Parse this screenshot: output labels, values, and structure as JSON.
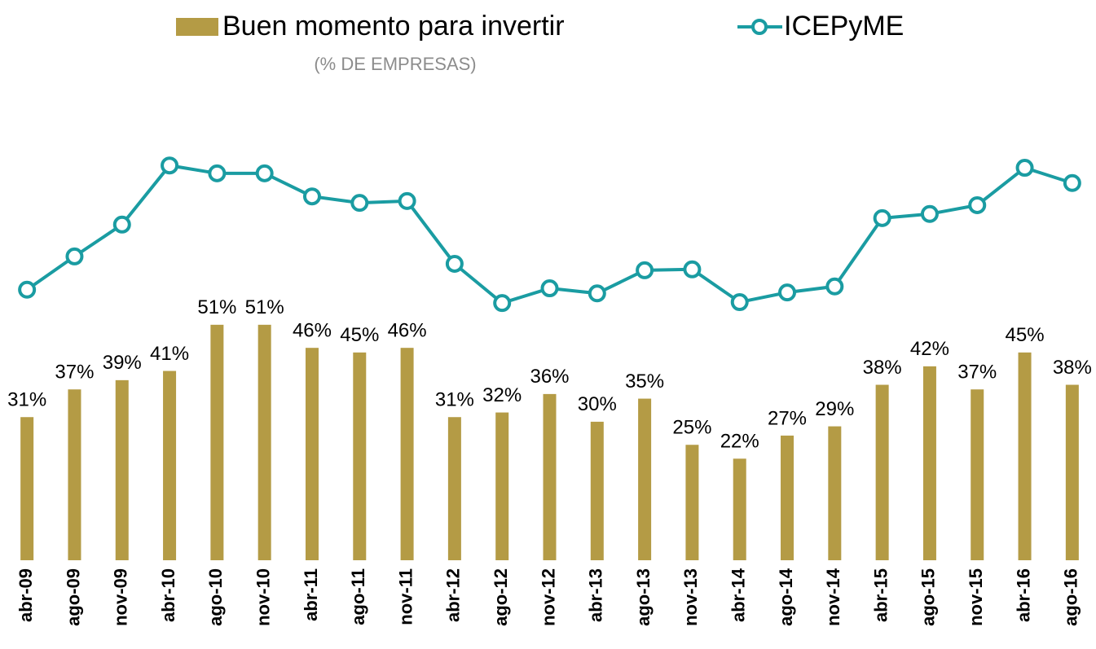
{
  "chart_data": {
    "type": "bar",
    "subtitle": "(% DE EMPRESAS)",
    "categories": [
      "abr-09",
      "ago-09",
      "nov-09",
      "abr-10",
      "ago-10",
      "nov-10",
      "abr-11",
      "ago-11",
      "nov-11",
      "abr-12",
      "ago-12",
      "nov-12",
      "abr-13",
      "ago-13",
      "nov-13",
      "abr-14",
      "ago-14",
      "nov-14",
      "abr-15",
      "ago-15",
      "nov-15",
      "abr-16",
      "ago-16"
    ],
    "series": [
      {
        "name": "Buen momento para invertir",
        "type": "bar",
        "color": "#b49b45",
        "values": [
          31,
          37,
          39,
          41,
          51,
          51,
          46,
          45,
          46,
          31,
          32,
          36,
          30,
          35,
          25,
          22,
          27,
          29,
          38,
          42,
          37,
          45,
          38
        ],
        "value_labels": [
          "31%",
          "37%",
          "39%",
          "41%",
          "51%",
          "51%",
          "46%",
          "45%",
          "46%",
          "31%",
          "32%",
          "36%",
          "30%",
          "35%",
          "25%",
          "22%",
          "27%",
          "29%",
          "38%",
          "42%",
          "37%",
          "45%",
          "38%"
        ]
      },
      {
        "name": "ICEPyME",
        "type": "line",
        "axis": "y2",
        "color": "#1a9ca2",
        "values": [
          58.6,
          65.8,
          72.7,
          85.5,
          83.8,
          83.8,
          78.8,
          77.4,
          77.8,
          64.2,
          55.7,
          58.9,
          57.8,
          62.8,
          63.0,
          55.9,
          58.0,
          59.3,
          74.1,
          75.0,
          76.9,
          85.0,
          81.7
        ]
      }
    ],
    "ylim": [
      0,
      100
    ],
    "y2lim": [
      0,
      100
    ]
  }
}
